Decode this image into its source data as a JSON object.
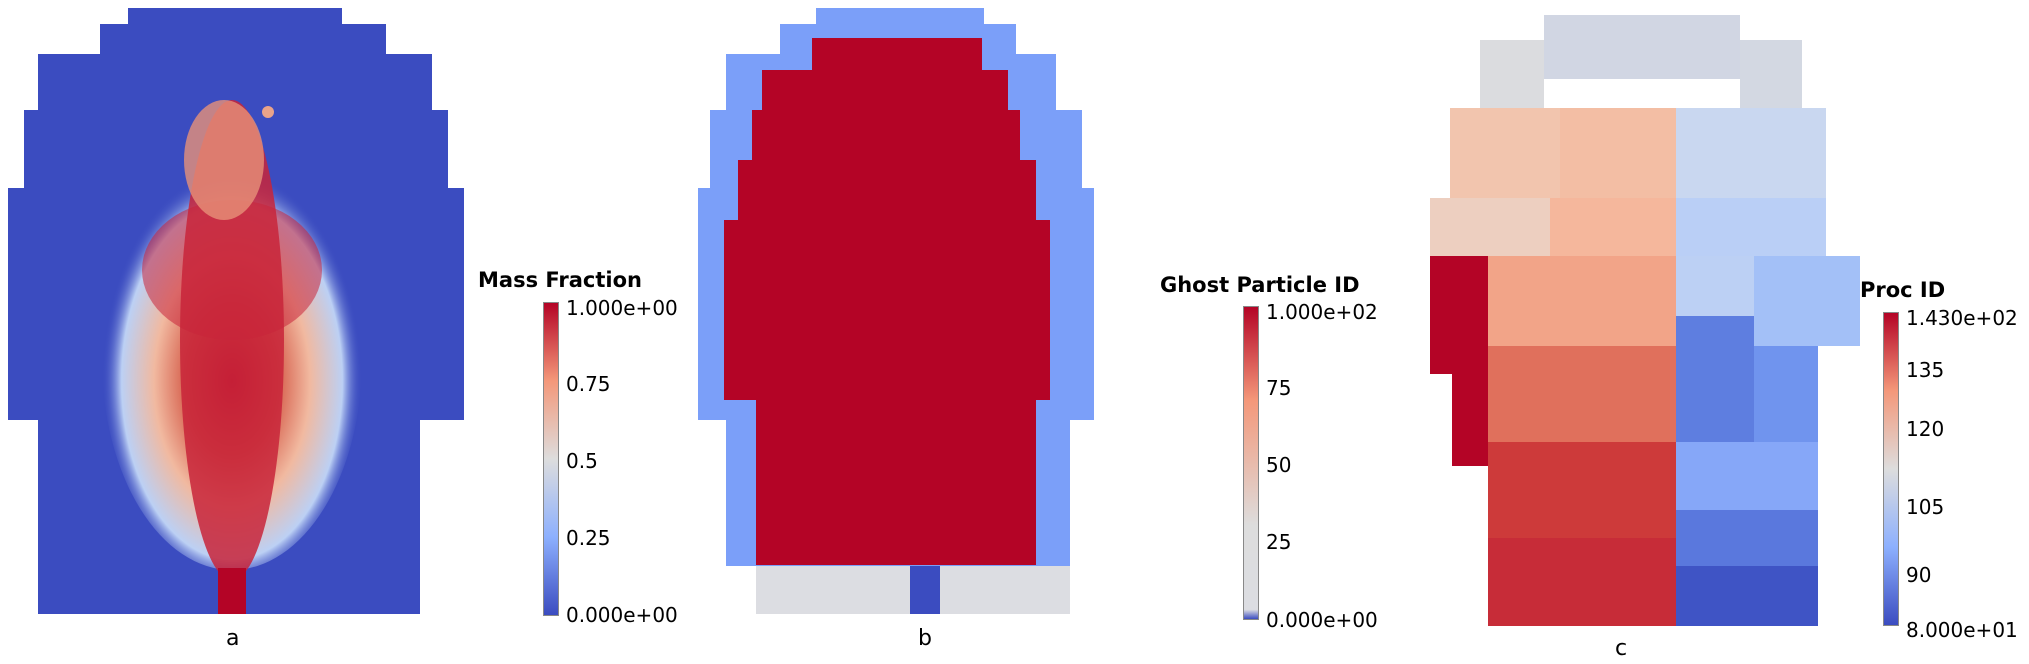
{
  "panels": [
    {
      "caption": "a",
      "colorbar": {
        "title": "Mass Fraction",
        "ticks": [
          "1.000e+00",
          "0.75",
          "0.5",
          "0.25",
          "0.000e+00"
        ]
      }
    },
    {
      "caption": "b",
      "colorbar": {
        "title": "Ghost Particle ID",
        "ticks": [
          "1.000e+02",
          "75",
          "50",
          "25",
          "0.000e+00"
        ]
      }
    },
    {
      "caption": "c",
      "colorbar": {
        "title": "Proc ID",
        "ticks": [
          "1.430e+02",
          "135",
          "120",
          "105",
          "90",
          "8.000e+01"
        ]
      }
    }
  ],
  "colormap": {
    "name": "cool-to-warm",
    "low": "#3b4cc0",
    "mid": "#dddddd",
    "high": "#b40426"
  }
}
